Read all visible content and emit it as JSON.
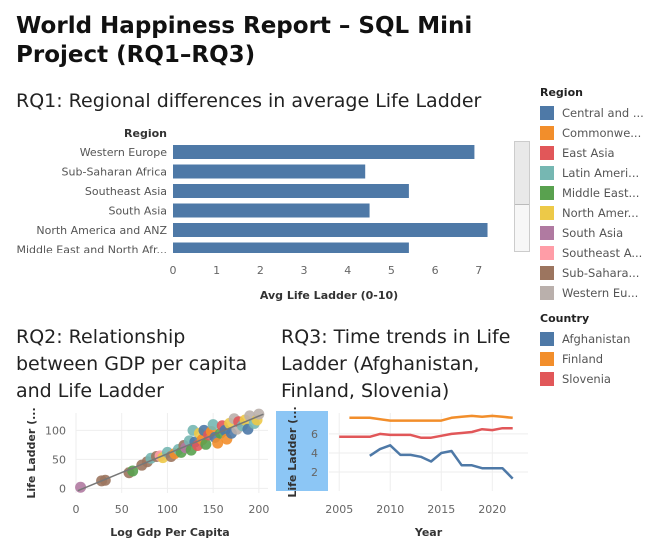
{
  "dashboard": {
    "title": "World Happiness Report – SQL Mini Project (RQ1–RQ3)"
  },
  "rq1": {
    "title": "RQ1: Regional differences in average Life Ladder",
    "region_header": "Region"
  },
  "rq2": {
    "title": "RQ2: Relationship between GDP per capita and Life Ladder"
  },
  "rq3": {
    "title": "RQ3: Time trends in Life Ladder (Afghanistan, Finland, Slovenia)"
  },
  "legend_region": {
    "title": "Region",
    "items": [
      {
        "label": "Central and ...",
        "color": "#4e79a7"
      },
      {
        "label": "Commonwe...",
        "color": "#f28e2b"
      },
      {
        "label": "East Asia",
        "color": "#e15759"
      },
      {
        "label": "Latin Ameri...",
        "color": "#76b7b2"
      },
      {
        "label": "Middle East...",
        "color": "#59a14f"
      },
      {
        "label": "North Amer...",
        "color": "#edc948"
      },
      {
        "label": "South Asia",
        "color": "#b07aa1"
      },
      {
        "label": "Southeast A...",
        "color": "#ff9da7"
      },
      {
        "label": "Sub-Sahara...",
        "color": "#9c755f"
      },
      {
        "label": "Western Eu...",
        "color": "#bab0ac"
      }
    ]
  },
  "legend_country": {
    "title": "Country",
    "items": [
      {
        "label": "Afghanistan",
        "color": "#4e79a7"
      },
      {
        "label": "Finland",
        "color": "#f28e2b"
      },
      {
        "label": "Slovenia",
        "color": "#e15759"
      }
    ]
  },
  "chart_data": [
    {
      "type": "bar",
      "orientation": "horizontal",
      "categories": [
        "Western Europe",
        "Sub-Saharan Africa",
        "Southeast Asia",
        "South Asia",
        "North America and ANZ",
        "Middle East and North Afr..."
      ],
      "values": [
        6.9,
        4.4,
        5.4,
        4.5,
        7.2,
        5.4
      ],
      "xlabel": "Avg Life Ladder (0-10)",
      "xlim": [
        0,
        7.6
      ],
      "xticks": [
        0,
        1,
        2,
        3,
        4,
        5,
        6,
        7
      ],
      "bar_color": "#4e79a7"
    },
    {
      "type": "scatter",
      "xlabel": "Log Gdp Per Capita",
      "ylabel": "Life Ladder (...",
      "xlim": [
        0,
        210
      ],
      "ylim": [
        -8,
        130
      ],
      "xticks": [
        0,
        50,
        100,
        150,
        200
      ],
      "yticks": [
        0,
        50,
        100
      ],
      "trend_line": [
        [
          2,
          -4
        ],
        [
          205,
          128
        ]
      ],
      "points": [
        {
          "x": 5,
          "y": 2,
          "c": "#b07aa1"
        },
        {
          "x": 28,
          "y": 13,
          "c": "#9c755f"
        },
        {
          "x": 32,
          "y": 14,
          "c": "#9c755f"
        },
        {
          "x": 58,
          "y": 27,
          "c": "#9c755f"
        },
        {
          "x": 62,
          "y": 30,
          "c": "#59a14f"
        },
        {
          "x": 72,
          "y": 40,
          "c": "#9c755f"
        },
        {
          "x": 78,
          "y": 46,
          "c": "#9c755f"
        },
        {
          "x": 82,
          "y": 52,
          "c": "#76b7b2"
        },
        {
          "x": 88,
          "y": 55,
          "c": "#9c755f"
        },
        {
          "x": 92,
          "y": 56,
          "c": "#ff9da7"
        },
        {
          "x": 95,
          "y": 53,
          "c": "#edc948"
        },
        {
          "x": 100,
          "y": 62,
          "c": "#76b7b2"
        },
        {
          "x": 104,
          "y": 55,
          "c": "#9c755f"
        },
        {
          "x": 108,
          "y": 60,
          "c": "#f28e2b"
        },
        {
          "x": 112,
          "y": 67,
          "c": "#76b7b2"
        },
        {
          "x": 115,
          "y": 62,
          "c": "#59a14f"
        },
        {
          "x": 118,
          "y": 74,
          "c": "#9c755f"
        },
        {
          "x": 120,
          "y": 70,
          "c": "#b07aa1"
        },
        {
          "x": 124,
          "y": 82,
          "c": "#76b7b2"
        },
        {
          "x": 126,
          "y": 66,
          "c": "#59a14f"
        },
        {
          "x": 128,
          "y": 100,
          "c": "#76b7b2"
        },
        {
          "x": 130,
          "y": 80,
          "c": "#4e79a7"
        },
        {
          "x": 133,
          "y": 74,
          "c": "#e15759"
        },
        {
          "x": 135,
          "y": 95,
          "c": "#edc948"
        },
        {
          "x": 138,
          "y": 84,
          "c": "#f28e2b"
        },
        {
          "x": 140,
          "y": 100,
          "c": "#4e79a7"
        },
        {
          "x": 142,
          "y": 76,
          "c": "#59a14f"
        },
        {
          "x": 145,
          "y": 92,
          "c": "#e15759"
        },
        {
          "x": 148,
          "y": 98,
          "c": "#f28e2b"
        },
        {
          "x": 150,
          "y": 110,
          "c": "#76b7b2"
        },
        {
          "x": 152,
          "y": 88,
          "c": "#4e79a7"
        },
        {
          "x": 155,
          "y": 78,
          "c": "#f28e2b"
        },
        {
          "x": 158,
          "y": 95,
          "c": "#59a14f"
        },
        {
          "x": 160,
          "y": 108,
          "c": "#e15759"
        },
        {
          "x": 163,
          "y": 100,
          "c": "#4e79a7"
        },
        {
          "x": 165,
          "y": 85,
          "c": "#f28e2b"
        },
        {
          "x": 168,
          "y": 112,
          "c": "#edc948"
        },
        {
          "x": 170,
          "y": 95,
          "c": "#4e79a7"
        },
        {
          "x": 173,
          "y": 120,
          "c": "#bab0ac"
        },
        {
          "x": 176,
          "y": 102,
          "c": "#bab0ac"
        },
        {
          "x": 178,
          "y": 115,
          "c": "#e15759"
        },
        {
          "x": 182,
          "y": 108,
          "c": "#76b7b2"
        },
        {
          "x": 185,
          "y": 118,
          "c": "#edc948"
        },
        {
          "x": 188,
          "y": 102,
          "c": "#4e79a7"
        },
        {
          "x": 190,
          "y": 125,
          "c": "#bab0ac"
        },
        {
          "x": 195,
          "y": 112,
          "c": "#76b7b2"
        },
        {
          "x": 198,
          "y": 118,
          "c": "#edc948"
        },
        {
          "x": 200,
          "y": 128,
          "c": "#bab0ac"
        }
      ]
    },
    {
      "type": "line",
      "xlabel": "Year",
      "ylabel": "Life Ladder (...",
      "xlim": [
        2004,
        2023.5
      ],
      "ylim": [
        0,
        8.2
      ],
      "xticks": [
        2005,
        2010,
        2015,
        2020
      ],
      "yticks": [
        2,
        4,
        6
      ],
      "series": [
        {
          "name": "Afghanistan",
          "color": "#4e79a7",
          "x": [
            2008,
            2009,
            2010,
            2011,
            2012,
            2013,
            2014,
            2015,
            2016,
            2017,
            2018,
            2019,
            2021,
            2022
          ],
          "y": [
            3.7,
            4.4,
            4.8,
            3.8,
            3.8,
            3.6,
            3.1,
            4.0,
            4.2,
            2.7,
            2.7,
            2.4,
            2.4,
            1.3
          ]
        },
        {
          "name": "Finland",
          "color": "#f28e2b",
          "x": [
            2006,
            2008,
            2010,
            2011,
            2012,
            2013,
            2014,
            2015,
            2016,
            2017,
            2018,
            2019,
            2020,
            2021,
            2022
          ],
          "y": [
            7.7,
            7.7,
            7.4,
            7.4,
            7.4,
            7.4,
            7.4,
            7.4,
            7.7,
            7.8,
            7.9,
            7.8,
            7.9,
            7.8,
            7.7
          ]
        },
        {
          "name": "Slovenia",
          "color": "#e15759",
          "x": [
            2005,
            2006,
            2007,
            2008,
            2009,
            2010,
            2011,
            2012,
            2013,
            2014,
            2015,
            2016,
            2017,
            2018,
            2019,
            2020,
            2021,
            2022
          ],
          "y": [
            5.7,
            5.7,
            5.7,
            5.7,
            6.0,
            5.9,
            5.9,
            5.9,
            5.6,
            5.6,
            5.8,
            6.0,
            6.1,
            6.2,
            6.5,
            6.4,
            6.6,
            6.6
          ]
        }
      ]
    }
  ]
}
